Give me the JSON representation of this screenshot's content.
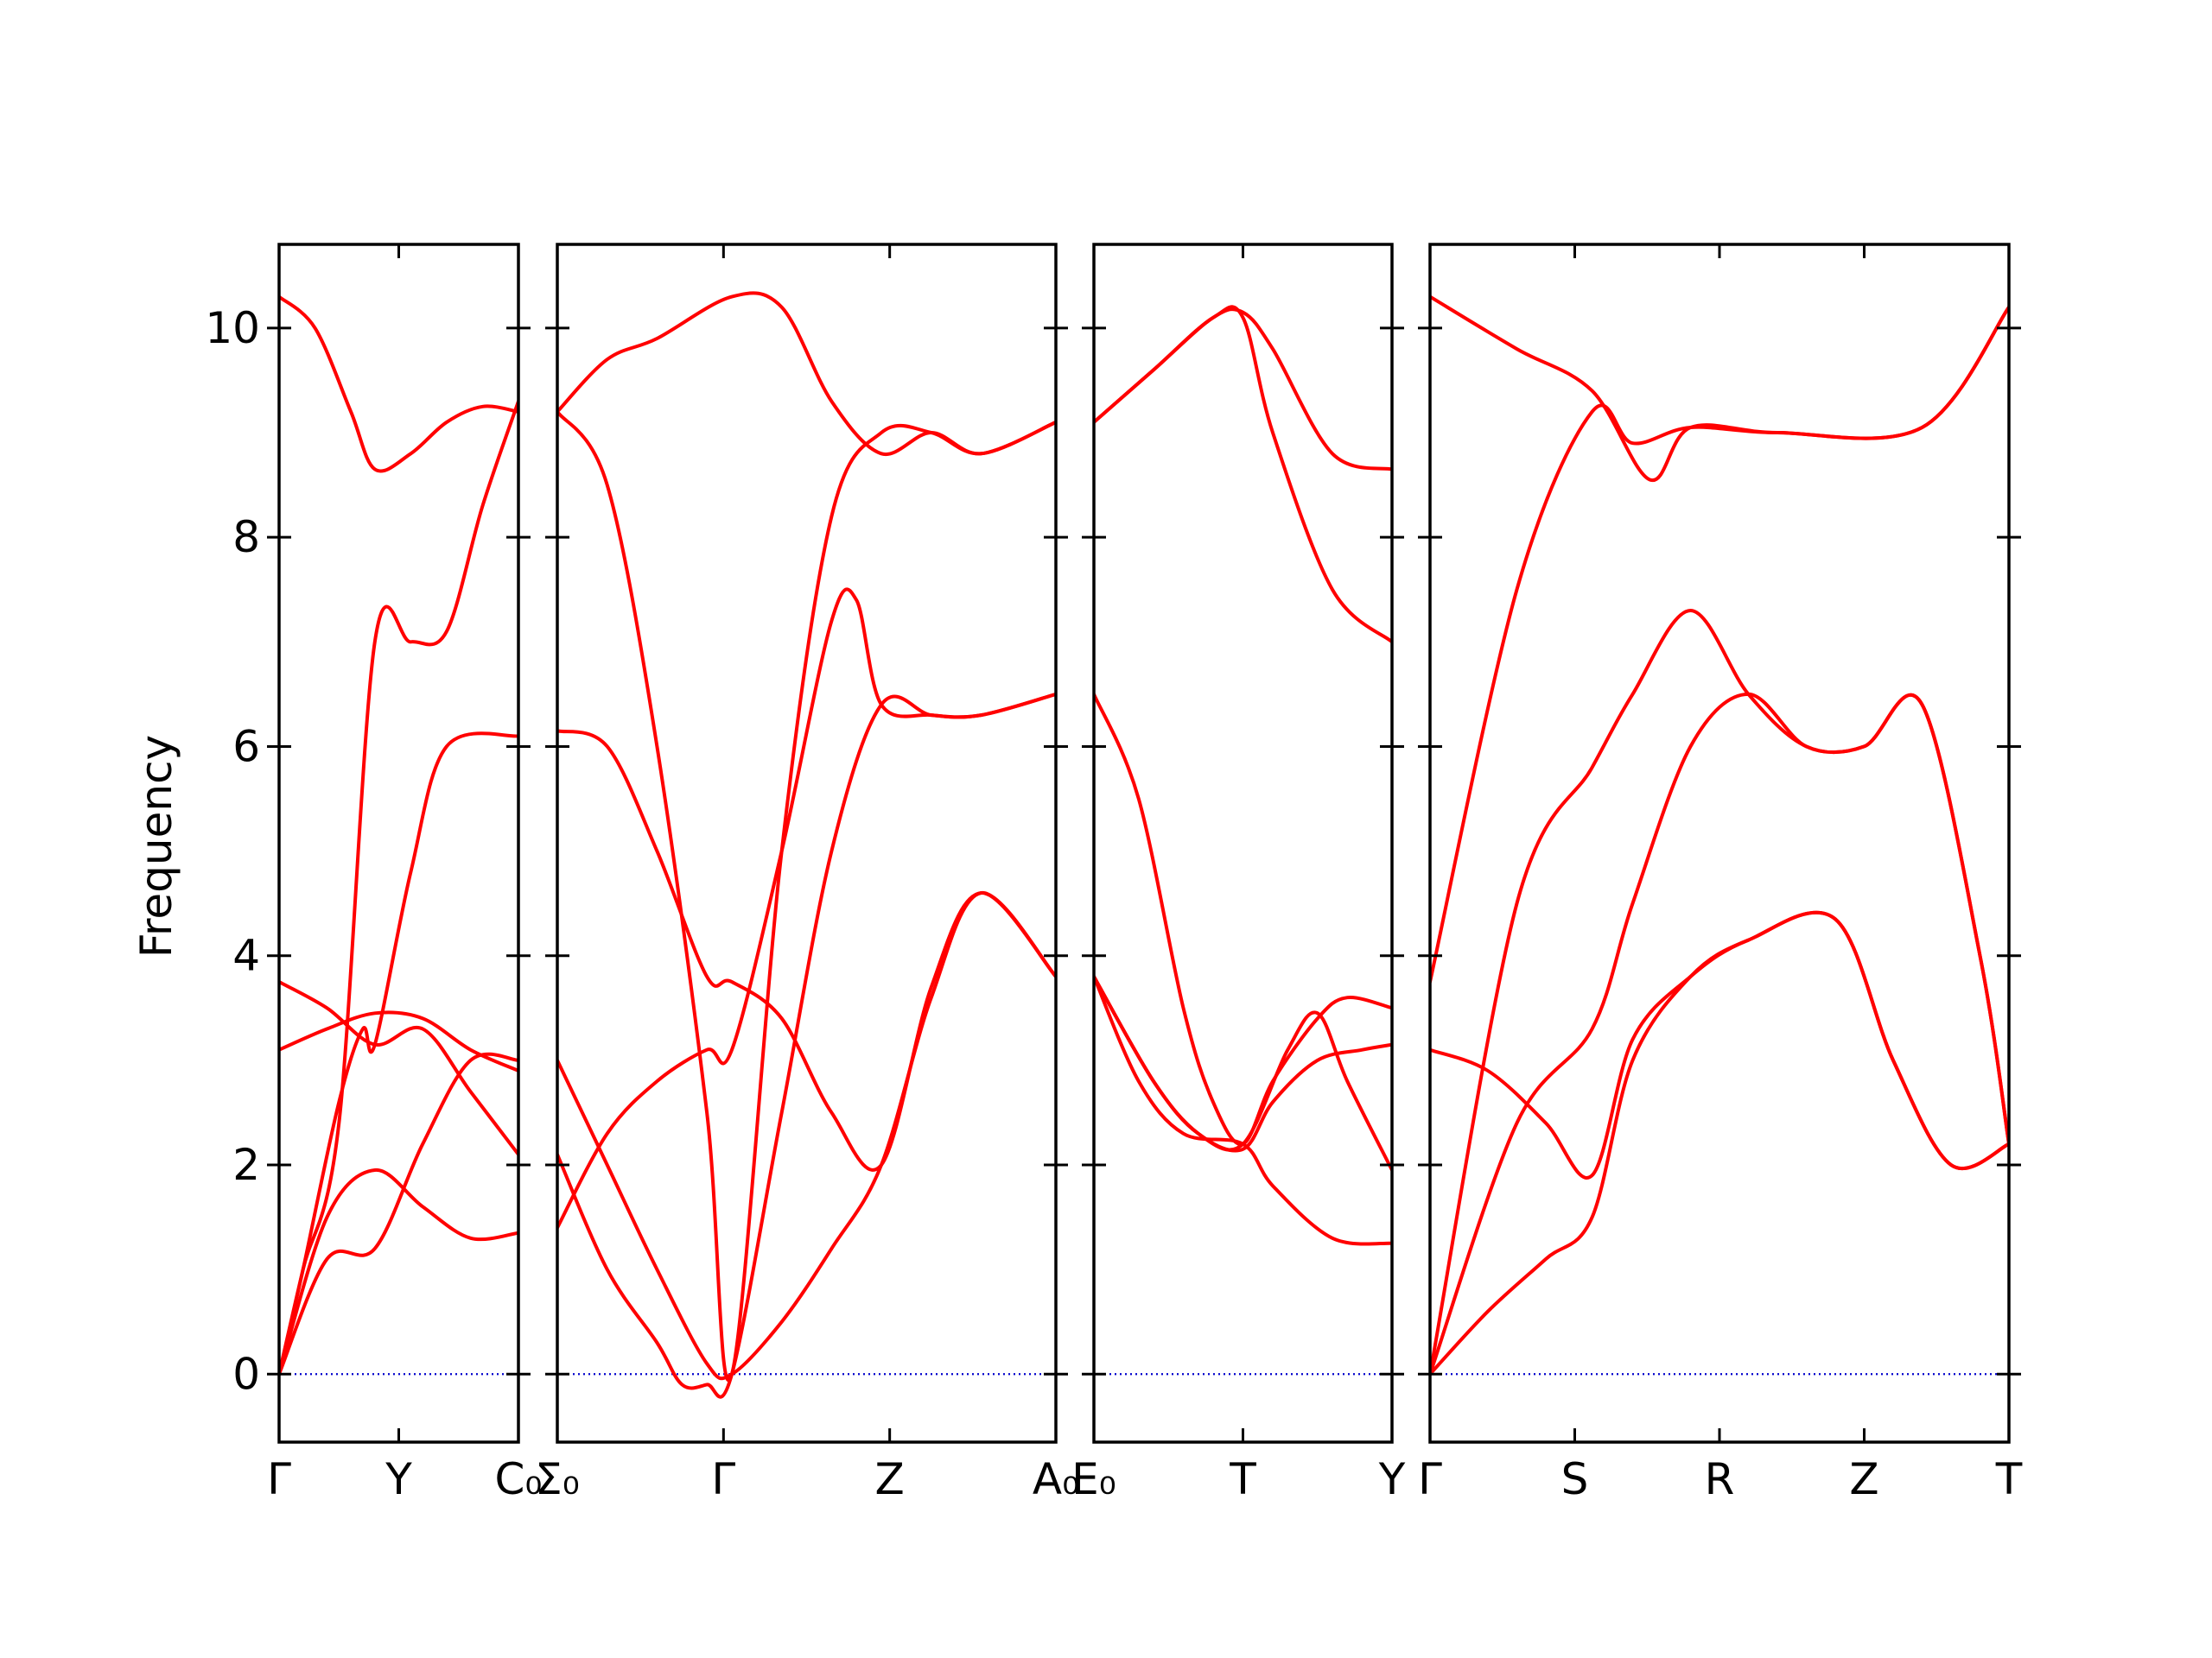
{
  "chart_data": {
    "type": "line",
    "title": "",
    "ylabel": "Frequency",
    "xlabel": "",
    "ylim": [
      -0.65,
      10.8
    ],
    "y_ticks": [
      0,
      2,
      4,
      6,
      8,
      10
    ],
    "grid": false,
    "legend": "none",
    "colors": {
      "bands": "#ff0000",
      "zero_line": "#0000cc",
      "axes": "#000000"
    },
    "panels": [
      {
        "name": "panel-1",
        "x_labels": [
          "Γ",
          "Y",
          "C₀"
        ],
        "bands": [
          [
            [
              0,
              0
            ],
            [
              0.1,
              1.0
            ],
            [
              0.25,
              2.4
            ],
            [
              0.4,
              7.0
            ],
            [
              0.55,
              7.0
            ],
            [
              0.7,
              7.1
            ],
            [
              0.85,
              8.3
            ],
            [
              1,
              9.3
            ]
          ],
          [
            [
              0,
              0
            ],
            [
              0.1,
              1.0
            ],
            [
              0.25,
              2.6
            ],
            [
              0.35,
              3.3
            ],
            [
              0.4,
              3.15
            ],
            [
              0.55,
              4.8
            ],
            [
              0.7,
              6.0
            ],
            [
              1,
              6.1
            ]
          ],
          [
            [
              0,
              0
            ],
            [
              0.2,
              1.5
            ],
            [
              0.4,
              1.95
            ],
            [
              0.6,
              1.6
            ],
            [
              0.8,
              1.3
            ],
            [
              1,
              1.35
            ]
          ],
          [
            [
              0,
              0
            ],
            [
              0.2,
              1.1
            ],
            [
              0.4,
              1.2
            ],
            [
              0.6,
              2.2
            ],
            [
              0.8,
              3.0
            ],
            [
              1,
              3.0
            ]
          ],
          [
            [
              0,
              3.75
            ],
            [
              0.2,
              3.5
            ],
            [
              0.4,
              3.15
            ],
            [
              0.6,
              3.3
            ],
            [
              0.8,
              2.7
            ],
            [
              1,
              2.1
            ]
          ],
          [
            [
              0,
              3.1
            ],
            [
              0.2,
              3.3
            ],
            [
              0.4,
              3.45
            ],
            [
              0.6,
              3.4
            ],
            [
              0.8,
              3.1
            ],
            [
              1,
              2.9
            ]
          ],
          [
            [
              0,
              10.3
            ],
            [
              0.15,
              10.0
            ],
            [
              0.3,
              9.2
            ],
            [
              0.4,
              8.65
            ],
            [
              0.55,
              8.8
            ],
            [
              0.7,
              9.1
            ],
            [
              0.85,
              9.25
            ],
            [
              1,
              9.2
            ]
          ]
        ]
      },
      {
        "name": "panel-2",
        "x_labels": [
          "Σ₀",
          "Γ",
          "Z",
          "A₀"
        ],
        "bands": [
          [
            [
              0,
              9.2
            ],
            [
              0.1,
              9.7
            ],
            [
              0.2,
              9.9
            ],
            [
              0.35,
              10.3
            ],
            [
              0.45,
              10.2
            ],
            [
              0.55,
              9.3
            ],
            [
              0.65,
              8.8
            ],
            [
              0.75,
              9.0
            ],
            [
              0.85,
              8.8
            ],
            [
              1,
              9.1
            ]
          ],
          [
            [
              0,
              9.2
            ],
            [
              0.1,
              8.5
            ],
            [
              0.2,
              6.0
            ],
            [
              0.3,
              2.5
            ],
            [
              0.35,
              0
            ],
            [
              0.45,
              5.0
            ],
            [
              0.55,
              8.2
            ],
            [
              0.65,
              9.0
            ],
            [
              0.75,
              9.0
            ],
            [
              0.85,
              8.8
            ],
            [
              1,
              9.1
            ]
          ],
          [
            [
              0,
              6.15
            ],
            [
              0.1,
              6.0
            ],
            [
              0.2,
              5.0
            ],
            [
              0.3,
              3.8
            ],
            [
              0.35,
              3.75
            ],
            [
              0.45,
              3.4
            ],
            [
              0.55,
              2.5
            ],
            [
              0.65,
              2.0
            ],
            [
              0.75,
              3.7
            ],
            [
              0.85,
              4.6
            ],
            [
              1,
              3.8
            ]
          ],
          [
            [
              0,
              3.0
            ],
            [
              0.1,
              2.0
            ],
            [
              0.2,
              1.0
            ],
            [
              0.3,
              0.1
            ],
            [
              0.35,
              0
            ],
            [
              0.45,
              0.5
            ],
            [
              0.55,
              1.2
            ],
            [
              0.65,
              2.0
            ],
            [
              0.75,
              3.6
            ],
            [
              0.85,
              4.6
            ],
            [
              1,
              3.8
            ]
          ],
          [
            [
              0,
              1.4
            ],
            [
              0.1,
              2.3
            ],
            [
              0.2,
              2.8
            ],
            [
              0.3,
              3.1
            ],
            [
              0.35,
              3.1
            ],
            [
              0.45,
              5.0
            ],
            [
              0.55,
              7.2
            ],
            [
              0.6,
              7.4
            ],
            [
              0.65,
              6.4
            ],
            [
              0.75,
              6.3
            ],
            [
              0.85,
              6.3
            ],
            [
              1,
              6.5
            ]
          ],
          [
            [
              0,
              2.1
            ],
            [
              0.1,
              1.0
            ],
            [
              0.2,
              0.3
            ],
            [
              0.25,
              -0.1
            ],
            [
              0.3,
              -0.1
            ],
            [
              0.35,
              0
            ],
            [
              0.45,
              2.5
            ],
            [
              0.55,
              5.0
            ],
            [
              0.65,
              6.4
            ],
            [
              0.75,
              6.3
            ],
            [
              0.85,
              6.3
            ],
            [
              1,
              6.5
            ]
          ]
        ]
      },
      {
        "name": "panel-3",
        "x_labels": [
          "E₀",
          "T",
          "Y"
        ],
        "bands": [
          [
            [
              0,
              9.1
            ],
            [
              0.2,
              9.6
            ],
            [
              0.4,
              10.1
            ],
            [
              0.5,
              10.15
            ],
            [
              0.6,
              9.8
            ],
            [
              0.8,
              8.8
            ],
            [
              1,
              8.65
            ]
          ],
          [
            [
              0,
              9.1
            ],
            [
              0.2,
              9.6
            ],
            [
              0.4,
              10.1
            ],
            [
              0.5,
              10.1
            ],
            [
              0.6,
              9.0
            ],
            [
              0.8,
              7.5
            ],
            [
              1,
              7.0
            ]
          ],
          [
            [
              0,
              6.5
            ],
            [
              0.15,
              5.5
            ],
            [
              0.3,
              3.5
            ],
            [
              0.4,
              2.6
            ],
            [
              0.5,
              2.2
            ],
            [
              0.6,
              2.8
            ],
            [
              0.75,
              3.4
            ],
            [
              0.85,
              3.6
            ],
            [
              1,
              3.5
            ]
          ],
          [
            [
              0,
              3.8
            ],
            [
              0.2,
              2.8
            ],
            [
              0.35,
              2.3
            ],
            [
              0.5,
              2.15
            ],
            [
              0.6,
              2.6
            ],
            [
              0.75,
              3.0
            ],
            [
              0.9,
              3.1
            ],
            [
              1,
              3.15
            ]
          ],
          [
            [
              0,
              3.8
            ],
            [
              0.2,
              2.8
            ],
            [
              0.35,
              2.3
            ],
            [
              0.5,
              2.2
            ],
            [
              0.65,
              3.1
            ],
            [
              0.75,
              3.45
            ],
            [
              0.85,
              2.8
            ],
            [
              1,
              1.95
            ]
          ],
          [
            [
              0,
              3.8
            ],
            [
              0.15,
              2.8
            ],
            [
              0.3,
              2.3
            ],
            [
              0.5,
              2.2
            ],
            [
              0.6,
              1.8
            ],
            [
              0.8,
              1.3
            ],
            [
              1,
              1.25
            ]
          ]
        ]
      },
      {
        "name": "panel-4",
        "x_labels": [
          "Γ",
          "S",
          "R",
          "Z",
          "T"
        ],
        "bands": [
          [
            [
              0,
              10.3
            ],
            [
              0.15,
              9.8
            ],
            [
              0.28,
              9.4
            ],
            [
              0.38,
              8.55
            ],
            [
              0.45,
              9.05
            ],
            [
              0.6,
              9.0
            ],
            [
              0.85,
              9.05
            ],
            [
              1,
              10.2
            ]
          ],
          [
            [
              0,
              3.75
            ],
            [
              0.15,
              7.5
            ],
            [
              0.28,
              9.2
            ],
            [
              0.35,
              8.9
            ],
            [
              0.45,
              9.05
            ],
            [
              0.6,
              9.0
            ],
            [
              0.85,
              9.05
            ],
            [
              1,
              10.2
            ]
          ],
          [
            [
              0,
              0
            ],
            [
              0.15,
              4.5
            ],
            [
              0.28,
              5.8
            ],
            [
              0.35,
              6.5
            ],
            [
              0.45,
              7.3
            ],
            [
              0.55,
              6.5
            ],
            [
              0.65,
              6.0
            ],
            [
              0.75,
              6.0
            ],
            [
              0.85,
              6.4
            ],
            [
              0.95,
              4.0
            ],
            [
              1,
              2.2
            ]
          ],
          [
            [
              0,
              0
            ],
            [
              0.15,
              2.4
            ],
            [
              0.28,
              3.3
            ],
            [
              0.35,
              4.5
            ],
            [
              0.45,
              6.0
            ],
            [
              0.55,
              6.5
            ],
            [
              0.65,
              6.0
            ],
            [
              0.75,
              6.0
            ],
            [
              0.85,
              6.4
            ],
            [
              0.95,
              4.0
            ],
            [
              1,
              2.2
            ]
          ],
          [
            [
              0,
              3.1
            ],
            [
              0.1,
              2.9
            ],
            [
              0.2,
              2.4
            ],
            [
              0.28,
              1.9
            ],
            [
              0.35,
              3.2
            ],
            [
              0.45,
              3.8
            ],
            [
              0.55,
              4.15
            ],
            [
              0.7,
              4.35
            ],
            [
              0.8,
              3.0
            ],
            [
              0.9,
              2.0
            ],
            [
              1,
              2.2
            ]
          ],
          [
            [
              0,
              0
            ],
            [
              0.1,
              0.6
            ],
            [
              0.2,
              1.1
            ],
            [
              0.28,
              1.5
            ],
            [
              0.35,
              3.0
            ],
            [
              0.45,
              3.8
            ],
            [
              0.55,
              4.15
            ],
            [
              0.7,
              4.35
            ],
            [
              0.8,
              3.0
            ],
            [
              0.9,
              2.0
            ],
            [
              1,
              2.2
            ]
          ]
        ]
      }
    ]
  }
}
